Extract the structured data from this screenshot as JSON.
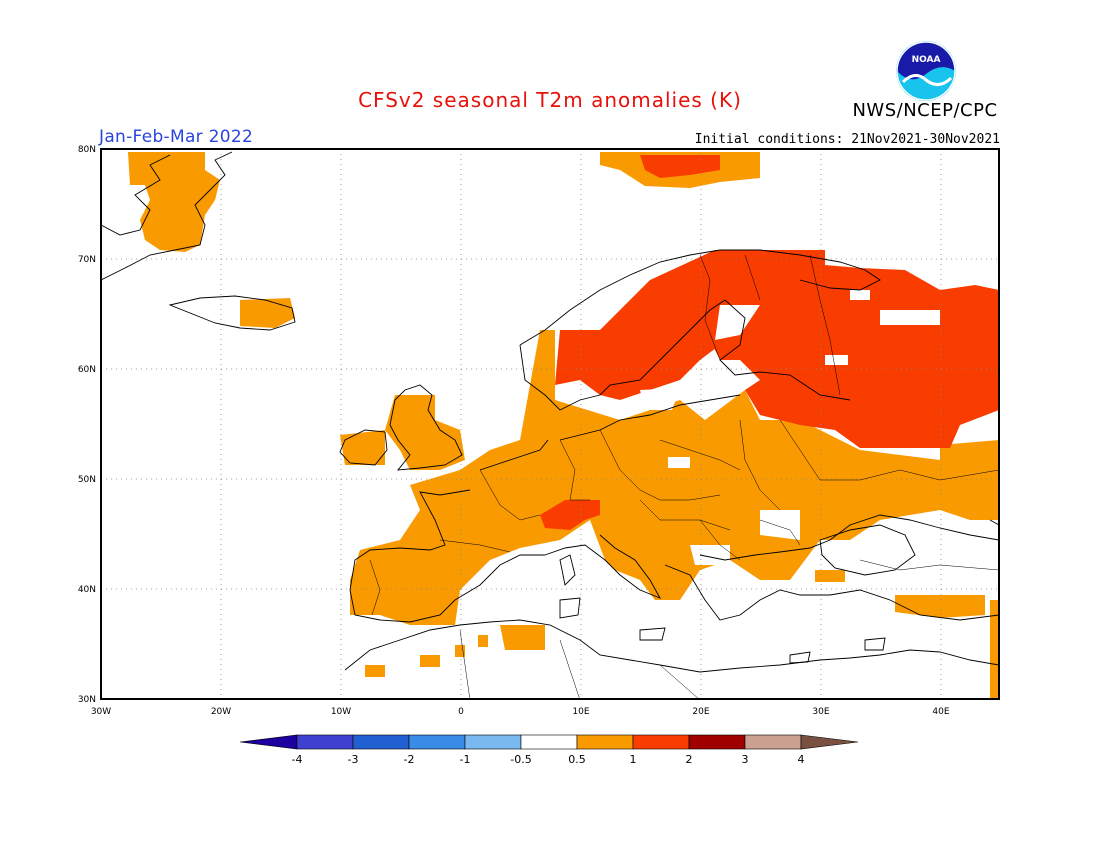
{
  "header": {
    "title": "CFSv2 seasonal T2m anomalies (K)",
    "title_color": "#e8100a",
    "agency": "NWS/NCEP/CPC",
    "period": "Jan-Feb-Mar 2022",
    "period_color": "#2a44e0",
    "initial_conditions": "Initial conditions: 21Nov2021-30Nov2021",
    "logo_text": "NOAA"
  },
  "map": {
    "region": "Europe",
    "lon_range": [
      -30,
      45
    ],
    "lat_range": [
      30,
      80
    ],
    "lat_labels": [
      "30N",
      "40N",
      "50N",
      "60N",
      "70N",
      "80N"
    ],
    "lon_labels": [
      "30W",
      "20W",
      "10W",
      "0",
      "10E",
      "20E",
      "30E",
      "40E"
    ],
    "grid": "dotted",
    "anomaly_regions": [
      {
        "name": "Scandinavia-Russia",
        "category": "1 to 2"
      },
      {
        "name": "Western & Central Europe",
        "category": "0.5 to 1"
      },
      {
        "name": "Alps",
        "category": "1 to 2"
      },
      {
        "name": "Greenland coast",
        "category": "0.5 to 1"
      },
      {
        "name": "Svalbard",
        "category": "1 to 2"
      }
    ]
  },
  "colorbar": {
    "ticks": [
      "-4",
      "-3",
      "-2",
      "-1",
      "-0.5",
      "0.5",
      "1",
      "2",
      "3",
      "4"
    ],
    "colors": [
      "#1e00a0",
      "#3f3fd0",
      "#2060d0",
      "#3a8ae8",
      "#7ab8f0",
      "#ffffff",
      "#f99a00",
      "#f93c00",
      "#a00000",
      "#caa090",
      "#7a5040"
    ]
  }
}
